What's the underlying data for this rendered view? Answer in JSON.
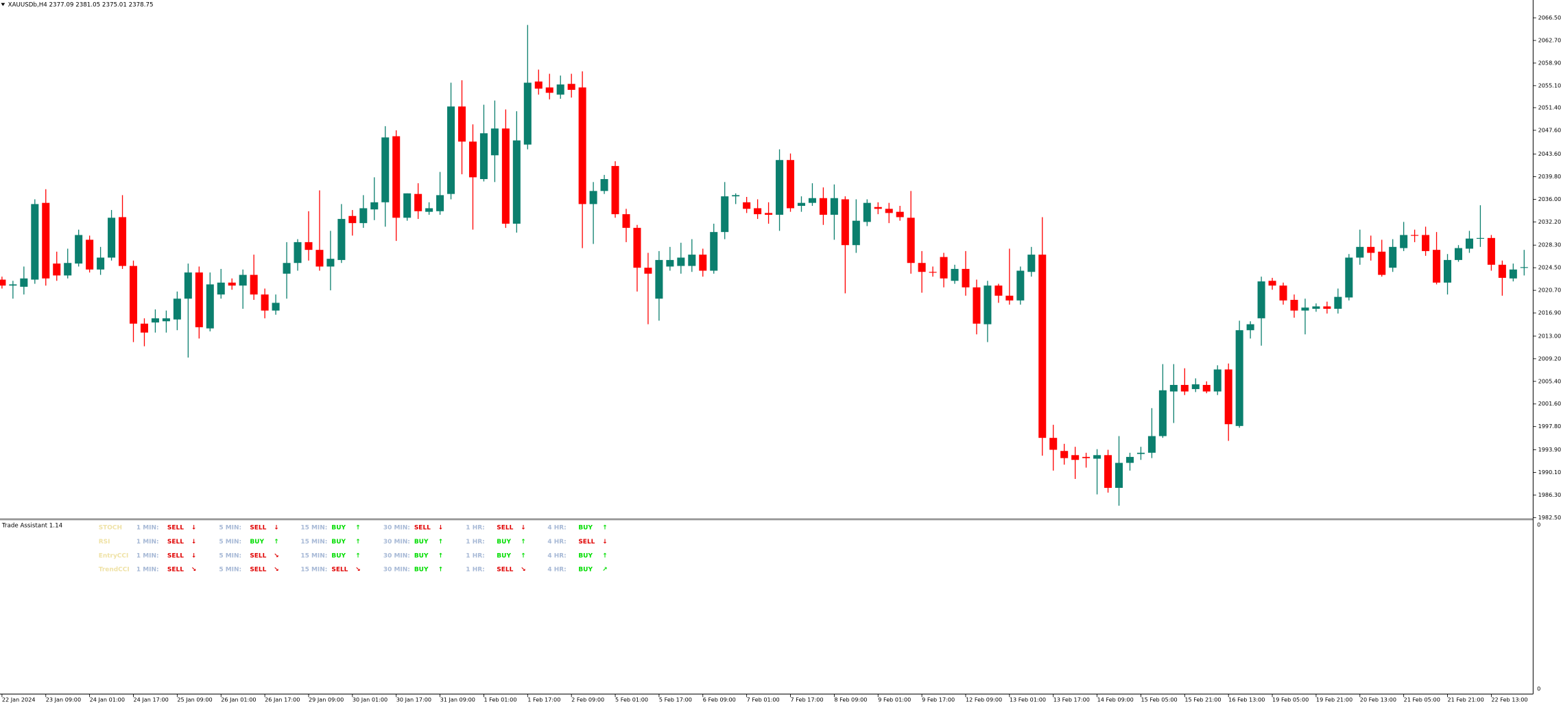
{
  "chart_data": {
    "type": "candlestick",
    "title": "XAUUSDb,H4  2377.09 2381.05 2375.01 2378.75",
    "up_color": "#0b7f6e",
    "down_color": "#ff0000",
    "ylim": [
      1982.3,
      2069.5
    ],
    "yticks": [
      {
        "value": 1982.5,
        "label": "1982.50"
      },
      {
        "value": 1986.3,
        "label": "1986.30"
      },
      {
        "value": 1990.1,
        "label": "1990.10"
      },
      {
        "value": 1993.9,
        "label": "1993.90"
      },
      {
        "value": 1997.8,
        "label": "1997.80"
      },
      {
        "value": 2001.6,
        "label": "2001.60"
      },
      {
        "value": 2005.4,
        "label": "2005.40"
      },
      {
        "value": 2009.2,
        "label": "2009.20"
      },
      {
        "value": 2013,
        "label": "2013.00"
      },
      {
        "value": 2016.9,
        "label": "2016.90"
      },
      {
        "value": 2020.7,
        "label": "2020.70"
      },
      {
        "value": 2024.5,
        "label": "2024.50"
      },
      {
        "value": 2028.3,
        "label": "2028.30"
      },
      {
        "value": 2032.2,
        "label": "2032.20"
      },
      {
        "value": 2036,
        "label": "2036.00"
      },
      {
        "value": 2039.8,
        "label": "2039.80"
      },
      {
        "value": 2043.6,
        "label": "2043.60"
      },
      {
        "value": 2047.6,
        "label": "2047.60"
      },
      {
        "value": 2051.4,
        "label": "2051.40"
      },
      {
        "value": 2055.1,
        "label": "2055.10"
      },
      {
        "value": 2058.9,
        "label": "2058.90"
      },
      {
        "value": 2062.7,
        "label": "2062.70"
      },
      {
        "value": 2066.5,
        "label": "2066.50"
      }
    ],
    "categories": [
      "22 Jan 2024",
      null,
      null,
      null,
      "23 Jan 09:00",
      null,
      null,
      null,
      "24 Jan 01:00",
      null,
      null,
      null,
      "24 Jan 17:00",
      null,
      null,
      null,
      "25 Jan 09:00",
      null,
      null,
      null,
      "26 Jan 01:00",
      null,
      null,
      null,
      "26 Jan 17:00",
      null,
      null,
      null,
      "29 Jan 09:00",
      null,
      null,
      null,
      "30 Jan 01:00",
      null,
      null,
      null,
      "30 Jan 17:00",
      null,
      null,
      null,
      "31 Jan 09:00",
      null,
      null,
      null,
      "1 Feb 01:00",
      null,
      null,
      null,
      "1 Feb 17:00",
      null,
      null,
      null,
      "2 Feb 09:00",
      null,
      null,
      null,
      "5 Feb 01:00",
      null,
      null,
      null,
      "5 Feb 17:00",
      null,
      null,
      null,
      "6 Feb 09:00",
      null,
      null,
      null,
      "7 Feb 01:00",
      null,
      null,
      null,
      "7 Feb 17:00",
      null,
      null,
      null,
      "8 Feb 09:00",
      null,
      null,
      null,
      "9 Feb 01:00",
      null,
      null,
      null,
      "9 Feb 17:00",
      null,
      null,
      null,
      "12 Feb 09:00",
      null,
      null,
      null,
      "13 Feb 01:00",
      null,
      null,
      null,
      "13 Feb 17:00",
      null,
      null,
      null,
      "14 Feb 09:00",
      null,
      null,
      null,
      "15 Feb 05:00",
      null,
      null,
      null,
      "15 Feb 21:00",
      null,
      null,
      null,
      "16 Feb 13:00",
      null,
      null,
      null,
      "19 Feb 05:00",
      null,
      null,
      null,
      "19 Feb 21:00",
      null,
      null,
      null,
      "20 Feb 13:00",
      null,
      null,
      null,
      "21 Feb 05:00",
      null,
      null,
      null,
      "21 Feb 21:00",
      null,
      null,
      null,
      "22 Feb 13:00",
      null,
      null,
      null
    ],
    "open": [
      2022.5,
      2021.5,
      2021.3,
      2022.5,
      2035.4,
      2025.2,
      2023.2,
      2025.2,
      2029.2,
      2024.2,
      2026.2,
      2033.0,
      2024.8,
      2015.1,
      2015.3,
      2015.5,
      2015.8,
      2019.3,
      2023.7,
      2014.3,
      2020.0,
      2022.0,
      2021.5,
      2023.3,
      2020.0,
      2017.3,
      2023.5,
      2025.3,
      2028.8,
      2027.5,
      2024.7,
      2025.8,
      2033.2,
      2032.0,
      2034.3,
      2035.5,
      2046.6,
      2032.9,
      2036.9,
      2033.9,
      2034.0,
      2036.9,
      2051.6,
      2045.7,
      2039.4,
      2043.4,
      2047.9,
      2031.9,
      2045.2,
      2055.8,
      2054.8,
      2053.6,
      2055.4,
      2054.8,
      2035.2,
      2037.4,
      2041.6,
      2033.5,
      2031.2,
      2024.5,
      2019.3,
      2024.7,
      2024.8,
      2024.8,
      2026.7,
      2024.0,
      2030.5,
      2036.5,
      2035.5,
      2034.5,
      2033.7,
      2033.4,
      2042.6,
      2034.9,
      2035.4,
      2036.2,
      2033.4,
      2036.0,
      2028.3,
      2032.2,
      2034.7,
      2034.4,
      2033.9,
      2032.9,
      2025.3,
      2023.8,
      2026.3,
      2022.3,
      2024.3,
      2021.2,
      2015.0,
      2021.5,
      2019.8,
      2019.0,
      2023.8,
      2026.7,
      1995.9,
      1993.7,
      1993.0,
      1992.7,
      1992.4,
      1993.0,
      1987.5,
      1991.7,
      1993.2,
      1993.4,
      1996.2,
      2003.7,
      2004.8,
      2004.1,
      2004.8,
      2003.7,
      2007.4,
      1997.9,
      2014.0,
      2016.0,
      2022.3,
      2021.5,
      2019.1,
      2017.3,
      2017.6,
      2018.0,
      2017.6,
      2019.5,
      2026.2,
      2028.0,
      2027.2,
      2024.5,
      2027.8,
      2030.0,
      2030.0,
      2027.5,
      2022.0,
      2025.8,
      2027.7,
      2029.4,
      2029.5,
      2025.0,
      2022.7,
      2024.5
    ],
    "high": [
      2023.0,
      2022.3,
      2024.7,
      2036.0,
      2037.7,
      2027.2,
      2027.7,
      2030.9,
      2029.9,
      2028.0,
      2034.2,
      2036.7,
      2025.7,
      2016.0,
      2017.5,
      2017.3,
      2020.5,
      2025.2,
      2024.7,
      2023.7,
      2024.3,
      2022.7,
      2024.2,
      2026.7,
      2021.0,
      2020.0,
      2028.8,
      2029.3,
      2034.0,
      2037.5,
      2030.7,
      2035.2,
      2034.2,
      2036.7,
      2039.7,
      2048.3,
      2047.6,
      2037.0,
      2038.7,
      2035.5,
      2040.6,
      2055.6,
      2056.0,
      2048.6,
      2051.9,
      2052.6,
      2051.1,
      2050.8,
      2065.3,
      2057.8,
      2057.1,
      2056.8,
      2057.1,
      2057.5,
      2038.9,
      2040.1,
      2042.4,
      2034.4,
      2031.7,
      2027.0,
      2027.3,
      2028.0,
      2028.7,
      2029.3,
      2027.7,
      2031.9,
      2038.9,
      2037.0,
      2036.4,
      2036.0,
      2035.5,
      2044.4,
      2043.7,
      2036.5,
      2038.7,
      2038.0,
      2038.5,
      2036.5,
      2036.0,
      2036.0,
      2035.5,
      2035.4,
      2034.9,
      2037.4,
      2027.3,
      2024.7,
      2027.0,
      2025.0,
      2027.3,
      2022.5,
      2022.3,
      2021.8,
      2027.7,
      2024.7,
      2028.0,
      2033.0,
      1998.1,
      1994.9,
      1994.4,
      1993.4,
      1994.0,
      1993.9,
      1996.2,
      1993.4,
      1994.4,
      2000.9,
      2008.3,
      2008.3,
      2007.6,
      2005.9,
      2005.4,
      2008.1,
      2008.4,
      2015.6,
      2015.5,
      2023.0,
      2022.8,
      2022.0,
      2020.0,
      2019.3,
      2018.5,
      2018.8,
      2021.0,
      2026.8,
      2030.9,
      2029.9,
      2029.2,
      2029.3,
      2032.2,
      2030.9,
      2031.4,
      2030.5,
      2026.8,
      2028.3,
      2030.7,
      2035.0,
      2030.0,
      2025.7,
      2025.2,
      2027.5
    ],
    "low": [
      2021.0,
      2019.3,
      2020.0,
      2021.8,
      2021.5,
      2022.3,
      2022.7,
      2024.7,
      2023.7,
      2023.3,
      2025.7,
      2024.3,
      2012.0,
      2011.3,
      2013.6,
      2013.6,
      2014.0,
      2009.4,
      2012.6,
      2013.8,
      2019.3,
      2020.8,
      2017.6,
      2019.1,
      2016.0,
      2016.6,
      2019.3,
      2024.0,
      2025.7,
      2024.0,
      2020.7,
      2025.3,
      2029.9,
      2031.2,
      2032.5,
      2031.4,
      2029.0,
      2032.4,
      2032.7,
      2033.4,
      2033.4,
      2036.0,
      2040.2,
      2030.9,
      2039.0,
      2038.9,
      2031.2,
      2030.4,
      2044.4,
      2053.6,
      2052.8,
      2052.9,
      2053.1,
      2027.8,
      2028.5,
      2036.9,
      2032.9,
      2028.8,
      2020.5,
      2015.0,
      2015.6,
      2024.0,
      2023.5,
      2023.8,
      2023.0,
      2023.5,
      2029.3,
      2035.2,
      2033.7,
      2032.7,
      2031.9,
      2030.7,
      2033.9,
      2033.9,
      2034.9,
      2031.7,
      2029.2,
      2020.2,
      2027.0,
      2031.5,
      2033.5,
      2032.0,
      2032.4,
      2023.5,
      2020.3,
      2023.0,
      2021.2,
      2021.8,
      2019.8,
      2013.3,
      2012.0,
      2018.6,
      2018.3,
      2018.3,
      2023.0,
      1992.9,
      1990.4,
      1991.4,
      1989.0,
      1990.9,
      1986.4,
      1986.7,
      1984.5,
      1990.4,
      1992.2,
      1992.5,
      1995.9,
      1998.4,
      2003.1,
      2003.6,
      2003.4,
      2003.1,
      1995.4,
      1997.6,
      2012.6,
      2011.4,
      2020.8,
      2018.3,
      2016.1,
      2013.3,
      2017.1,
      2016.8,
      2016.8,
      2019.0,
      2025.0,
      2025.7,
      2023.0,
      2023.8,
      2027.3,
      2028.8,
      2026.5,
      2021.7,
      2020.0,
      2025.5,
      2027.0,
      2028.0,
      2024.0,
      2019.8,
      2022.2,
      2023.2
    ],
    "close": [
      2021.5,
      2021.7,
      2022.7,
      2035.2,
      2022.7,
      2023.2,
      2025.3,
      2030.0,
      2024.2,
      2026.2,
      2032.9,
      2024.8,
      2015.1,
      2013.6,
      2016.0,
      2016.0,
      2019.3,
      2023.7,
      2014.5,
      2021.7,
      2022.0,
      2021.5,
      2023.3,
      2020.0,
      2017.3,
      2018.6,
      2025.3,
      2028.8,
      2027.5,
      2024.7,
      2026.0,
      2032.7,
      2032.0,
      2034.5,
      2035.5,
      2046.4,
      2032.9,
      2037.0,
      2034.0,
      2034.5,
      2036.7,
      2051.6,
      2045.7,
      2039.7,
      2047.1,
      2047.9,
      2031.9,
      2045.9,
      2055.6,
      2054.6,
      2053.9,
      2055.3,
      2054.4,
      2035.2,
      2037.4,
      2039.4,
      2033.5,
      2031.2,
      2024.5,
      2023.5,
      2025.8,
      2025.8,
      2026.2,
      2026.7,
      2024.0,
      2030.5,
      2036.5,
      2036.7,
      2034.4,
      2033.5,
      2033.4,
      2042.6,
      2034.5,
      2035.4,
      2036.2,
      2033.4,
      2036.2,
      2028.3,
      2032.4,
      2035.4,
      2034.4,
      2033.7,
      2033.0,
      2025.3,
      2023.8,
      2023.7,
      2022.7,
      2024.3,
      2021.2,
      2015.1,
      2021.5,
      2019.8,
      2019.0,
      2024.0,
      2026.7,
      1995.9,
      1993.9,
      1992.5,
      1992.2,
      1992.5,
      1993.0,
      1987.5,
      1991.7,
      1992.7,
      1993.4,
      1996.2,
      2003.9,
      2004.8,
      2003.7,
      2004.9,
      2003.7,
      2007.4,
      1998.2,
      2014.0,
      2015.0,
      2022.2,
      2021.5,
      2019.0,
      2017.3,
      2017.8,
      2018.0,
      2017.6,
      2019.6,
      2026.2,
      2028.0,
      2027.0,
      2023.3,
      2028.0,
      2030.0,
      2029.9,
      2027.3,
      2022.0,
      2025.8,
      2027.8,
      2029.4,
      2029.5,
      2025.0,
      2022.8,
      2024.2,
      2024.6
    ]
  },
  "indicator": {
    "title": "Trade Assistant 1.14",
    "axis_labels": [
      "0",
      "0"
    ],
    "timeframes": [
      "1 MIN:",
      "5 MIN:",
      "15 MIN:",
      "30 MIN:",
      "1 HR:",
      "4 HR:"
    ],
    "rows": [
      {
        "name": "STOCH",
        "signals": [
          {
            "text": "SELL",
            "arrow": "↓",
            "color": "#e00000"
          },
          {
            "text": "SELL",
            "arrow": "↓",
            "color": "#e00000"
          },
          {
            "text": "BUY",
            "arrow": "↑",
            "color": "#00dd00"
          },
          {
            "text": "SELL",
            "arrow": "↓",
            "color": "#e00000"
          },
          {
            "text": "SELL",
            "arrow": "↓",
            "color": "#e00000"
          },
          {
            "text": "BUY",
            "arrow": "↑",
            "color": "#00dd00"
          }
        ]
      },
      {
        "name": "RSI",
        "signals": [
          {
            "text": "SELL",
            "arrow": "↓",
            "color": "#e00000"
          },
          {
            "text": "BUY",
            "arrow": "↑",
            "color": "#00dd00"
          },
          {
            "text": "BUY",
            "arrow": "↑",
            "color": "#00dd00"
          },
          {
            "text": "BUY",
            "arrow": "↑",
            "color": "#00dd00"
          },
          {
            "text": "BUY",
            "arrow": "↑",
            "color": "#00dd00"
          },
          {
            "text": "SELL",
            "arrow": "↓",
            "color": "#e00000"
          }
        ]
      },
      {
        "name": "EntryCCI",
        "signals": [
          {
            "text": "SELL",
            "arrow": "↓",
            "color": "#e00000"
          },
          {
            "text": "SELL",
            "arrow": "↘",
            "color": "#e00000"
          },
          {
            "text": "BUY",
            "arrow": "↑",
            "color": "#00dd00"
          },
          {
            "text": "BUY",
            "arrow": "↑",
            "color": "#00dd00"
          },
          {
            "text": "BUY",
            "arrow": "↑",
            "color": "#00dd00"
          },
          {
            "text": "BUY",
            "arrow": "↑",
            "color": "#00dd00"
          }
        ]
      },
      {
        "name": "TrendCCI",
        "signals": [
          {
            "text": "SELL",
            "arrow": "↘",
            "color": "#e00000"
          },
          {
            "text": "SELL",
            "arrow": "↘",
            "color": "#e00000"
          },
          {
            "text": "SELL",
            "arrow": "↘",
            "color": "#e00000"
          },
          {
            "text": "BUY",
            "arrow": "↑",
            "color": "#00dd00"
          },
          {
            "text": "SELL",
            "arrow": "↘",
            "color": "#e00000"
          },
          {
            "text": "BUY",
            "arrow": "↗",
            "color": "#00dd00"
          }
        ]
      }
    ]
  }
}
